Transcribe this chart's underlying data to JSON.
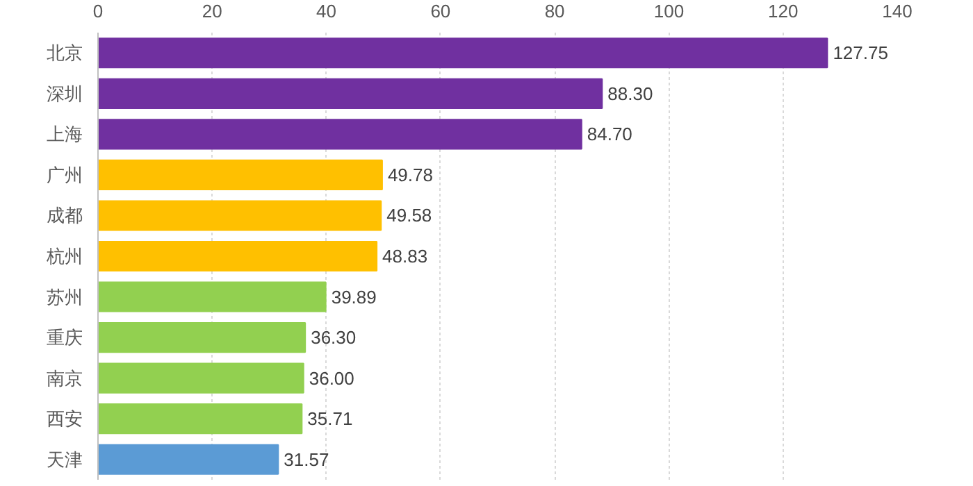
{
  "chart_data": {
    "type": "bar",
    "orientation": "horizontal",
    "categories": [
      "北京",
      "深圳",
      "上海",
      "广州",
      "成都",
      "杭州",
      "苏州",
      "重庆",
      "南京",
      "西安",
      "天津"
    ],
    "values": [
      127.75,
      88.3,
      84.7,
      49.78,
      49.58,
      48.83,
      39.89,
      36.3,
      36.0,
      35.71,
      31.57
    ],
    "value_labels": [
      "127.75",
      "88.30",
      "84.70",
      "49.78",
      "49.58",
      "48.83",
      "39.89",
      "36.30",
      "36.00",
      "35.71",
      "31.57"
    ],
    "colors": [
      "#7030a0",
      "#7030a0",
      "#7030a0",
      "#ffc000",
      "#ffc000",
      "#ffc000",
      "#92d050",
      "#92d050",
      "#92d050",
      "#92d050",
      "#5b9bd5"
    ],
    "xlim": [
      0,
      140
    ],
    "xticks": [
      0,
      20,
      40,
      60,
      80,
      100,
      120,
      140
    ],
    "grid": "x"
  }
}
